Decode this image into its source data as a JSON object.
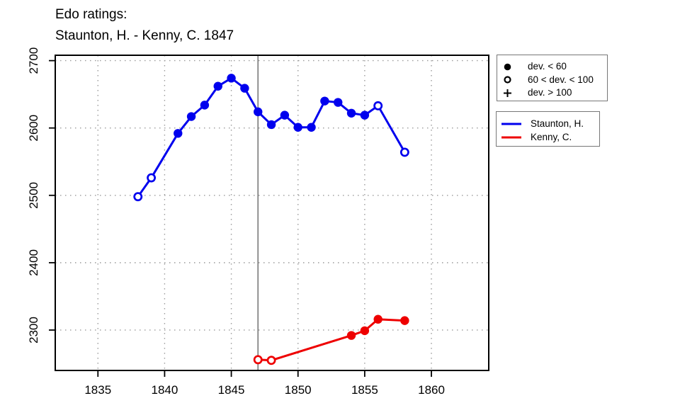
{
  "title": {
    "line1": "Edo ratings:",
    "line2": "Staunton, H. - Kenny, C. 1847"
  },
  "chart_data": {
    "type": "line",
    "title": "Edo ratings: Staunton, H. - Kenny, C. 1847",
    "xlabel": "",
    "ylabel": "",
    "grid": true,
    "x_ticks": [
      1835,
      1840,
      1845,
      1850,
      1855,
      1860
    ],
    "y_ticks": [
      2300,
      2400,
      2500,
      2600,
      2700
    ],
    "xlim": [
      1831.8,
      1864.3
    ],
    "ylim": [
      2240,
      2708
    ],
    "vline_x": 1847,
    "legend_position": "right-outside",
    "marker_legend": [
      {
        "symbol": "filled-circle",
        "label": "dev. < 60"
      },
      {
        "symbol": "open-circle",
        "label": "60 < dev. < 100"
      },
      {
        "symbol": "plus",
        "label": "dev. > 100"
      }
    ],
    "series": [
      {
        "name": "Staunton, H.",
        "color": "#0000ee",
        "points": [
          {
            "year": 1838,
            "rating": 2498,
            "marker": "open"
          },
          {
            "year": 1839,
            "rating": 2526,
            "marker": "open"
          },
          {
            "year": 1841,
            "rating": 2592,
            "marker": "filled"
          },
          {
            "year": 1842,
            "rating": 2617,
            "marker": "filled"
          },
          {
            "year": 1843,
            "rating": 2634,
            "marker": "filled"
          },
          {
            "year": 1844,
            "rating": 2662,
            "marker": "filled"
          },
          {
            "year": 1845,
            "rating": 2674,
            "marker": "filled"
          },
          {
            "year": 1846,
            "rating": 2659,
            "marker": "filled"
          },
          {
            "year": 1847,
            "rating": 2624,
            "marker": "filled"
          },
          {
            "year": 1848,
            "rating": 2605,
            "marker": "filled"
          },
          {
            "year": 1849,
            "rating": 2619,
            "marker": "filled"
          },
          {
            "year": 1850,
            "rating": 2601,
            "marker": "filled"
          },
          {
            "year": 1851,
            "rating": 2601,
            "marker": "filled"
          },
          {
            "year": 1852,
            "rating": 2640,
            "marker": "filled"
          },
          {
            "year": 1853,
            "rating": 2638,
            "marker": "filled"
          },
          {
            "year": 1854,
            "rating": 2622,
            "marker": "filled"
          },
          {
            "year": 1855,
            "rating": 2619,
            "marker": "filled"
          },
          {
            "year": 1856,
            "rating": 2633,
            "marker": "open"
          },
          {
            "year": 1858,
            "rating": 2564,
            "marker": "open"
          }
        ]
      },
      {
        "name": "Kenny, C.",
        "color": "#ee0000",
        "points": [
          {
            "year": 1847,
            "rating": 2256,
            "marker": "open"
          },
          {
            "year": 1848,
            "rating": 2255,
            "marker": "open"
          },
          {
            "year": 1854,
            "rating": 2292,
            "marker": "filled"
          },
          {
            "year": 1855,
            "rating": 2299,
            "marker": "filled"
          },
          {
            "year": 1856,
            "rating": 2316,
            "marker": "filled"
          },
          {
            "year": 1858,
            "rating": 2314,
            "marker": "filled"
          }
        ]
      }
    ]
  }
}
